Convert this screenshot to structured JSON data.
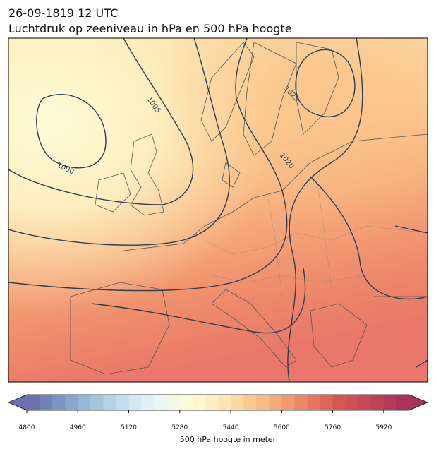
{
  "header": {
    "date": "26-09-1819 12 UTC",
    "title": "Luchtdruk op zeeniveau in hPa en 500 hPa hoogte"
  },
  "contour_labels": [
    "1005",
    "1000",
    "1025",
    "1020"
  ],
  "colorbar": {
    "label": "500 hPa hoogte in meter",
    "lim": [
      4800,
      6000
    ],
    "ticks": [
      4800,
      4960,
      5120,
      5280,
      5440,
      5600,
      5760,
      5920
    ],
    "colors": [
      "#6b70b0",
      "#7282ba",
      "#7a94c4",
      "#86a6cd",
      "#93b7d6",
      "#a3c6df",
      "#b3d3e7",
      "#c4deed",
      "#d3e8f2",
      "#e1f0f5",
      "#ecf6f2",
      "#f4f9e6",
      "#fbfbd9",
      "#fdf6cf",
      "#fdeec1",
      "#fde4b2",
      "#fcd8a2",
      "#fbca93",
      "#f8bb85",
      "#f5aa79",
      "#f1986e",
      "#ec8765",
      "#e6765d",
      "#df6557",
      "#d75653",
      "#d04f55",
      "#c94756",
      "#c04058",
      "#b5395a",
      "#a8325b"
    ]
  }
}
